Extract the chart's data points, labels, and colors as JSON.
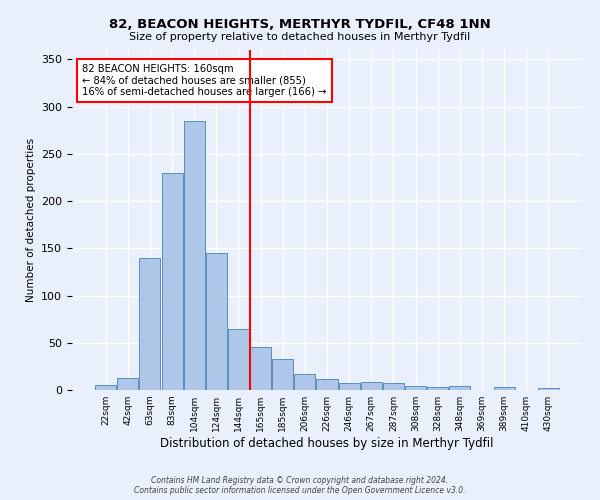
{
  "title": "82, BEACON HEIGHTS, MERTHYR TYDFIL, CF48 1NN",
  "subtitle": "Size of property relative to detached houses in Merthyr Tydfil",
  "xlabel": "Distribution of detached houses by size in Merthyr Tydfil",
  "ylabel": "Number of detached properties",
  "bin_labels": [
    "22sqm",
    "42sqm",
    "63sqm",
    "83sqm",
    "104sqm",
    "124sqm",
    "144sqm",
    "165sqm",
    "185sqm",
    "206sqm",
    "226sqm",
    "246sqm",
    "267sqm",
    "287sqm",
    "308sqm",
    "328sqm",
    "348sqm",
    "369sqm",
    "389sqm",
    "410sqm",
    "430sqm"
  ],
  "bar_heights": [
    5,
    13,
    140,
    230,
    285,
    145,
    65,
    46,
    33,
    17,
    12,
    7,
    9,
    7,
    4,
    3,
    4,
    0,
    3,
    0,
    2
  ],
  "bar_color": "#aec6e8",
  "bar_edge_color": "#5b8fbe",
  "background_color": "#eaf0fb",
  "grid_color": "#ffffff",
  "vline_color": "red",
  "vline_idx": 7,
  "annotation_text": "82 BEACON HEIGHTS: 160sqm\n← 84% of detached houses are smaller (855)\n16% of semi-detached houses are larger (166) →",
  "annotation_box_color": "white",
  "annotation_box_edge": "red",
  "footer": "Contains HM Land Registry data © Crown copyright and database right 2024.\nContains public sector information licensed under the Open Government Licence v3.0.",
  "ylim": [
    0,
    360
  ],
  "yticks": [
    0,
    50,
    100,
    150,
    200,
    250,
    300,
    350
  ]
}
